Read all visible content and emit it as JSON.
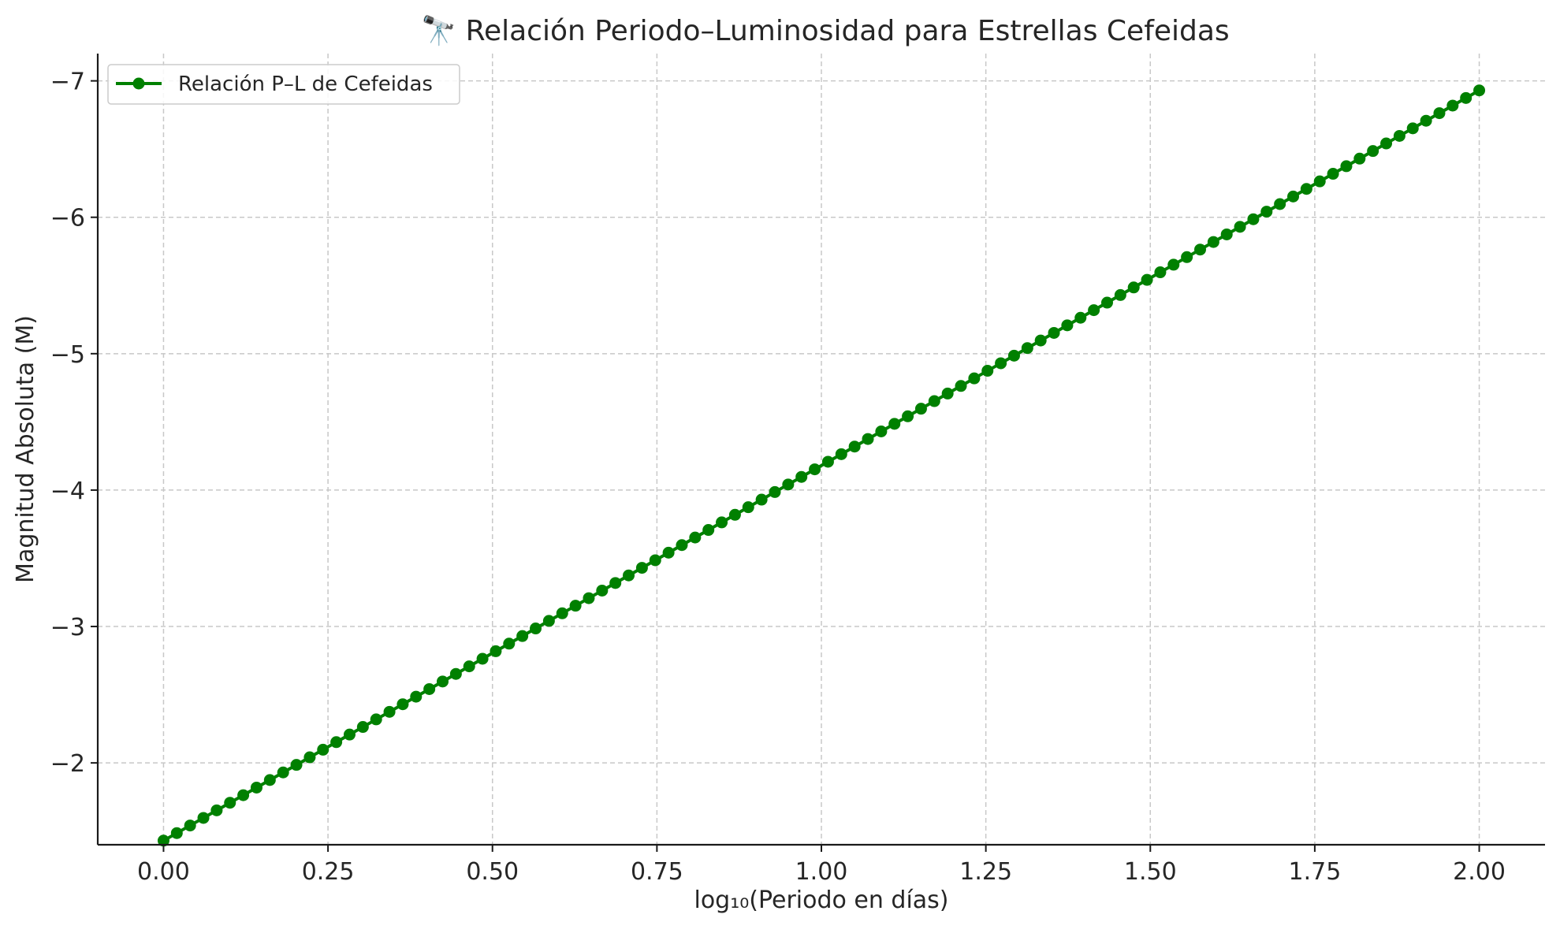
{
  "chart_data": {
    "type": "line",
    "title": "🔭 Relación Periodo–Luminosidad para Estrellas Cefeidas",
    "xlabel": "log₁₀(Periodo en días)",
    "ylabel": "Magnitud Absoluta (M)",
    "xlim": [
      -0.1,
      2.1
    ],
    "ylim": [
      -1.4,
      -7.2
    ],
    "y_inverted": true,
    "x_ticks": [
      0.0,
      0.25,
      0.5,
      0.75,
      1.0,
      1.25,
      1.5,
      1.75,
      2.0
    ],
    "x_tick_labels": [
      "0.00",
      "0.25",
      "0.50",
      "0.75",
      "1.00",
      "1.25",
      "1.50",
      "1.75",
      "2.00"
    ],
    "y_ticks": [
      -2,
      -3,
      -4,
      -5,
      -6,
      -7
    ],
    "y_tick_labels": [
      "−2",
      "−3",
      "−4",
      "−5",
      "−6",
      "−7"
    ],
    "grid": true,
    "legend": {
      "position": "top-left",
      "entries": [
        "Relación P–L de Cefeidas"
      ]
    },
    "series": [
      {
        "name": "Relación P–L de Cefeidas",
        "color": "#008000",
        "marker": "circle",
        "x_start": 0.0,
        "x_end": 2.0,
        "num_points": 100,
        "y_start": -1.43,
        "y_end": -6.93,
        "relation": "M = -2.75 * log10(P) - 1.43"
      }
    ]
  }
}
